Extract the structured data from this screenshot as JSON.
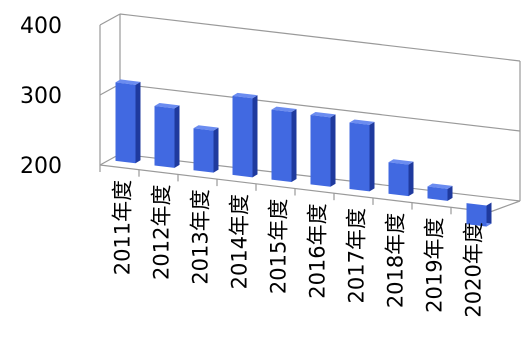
{
  "chart_data": {
    "type": "bar",
    "title": "",
    "xlabel": "",
    "ylabel": "",
    "categories": [
      "2011年度",
      "2012年度",
      "2013年度",
      "2014年度",
      "2015年度",
      "2016年度",
      "2017年度",
      "2018年度",
      "2019年度",
      "2020年度"
    ],
    "values": [
      312,
      285,
      260,
      313,
      300,
      299,
      295,
      245,
      217,
      170
    ],
    "ylim": [
      200,
      400
    ],
    "yticks": [
      200,
      300,
      400
    ],
    "grid": true,
    "legend": "none",
    "colors": {
      "bar_front": "#4169e1",
      "bar_side": "#1f3a9e",
      "bar_top": "#6b8cf0",
      "grid": "#9a9a9a"
    }
  }
}
